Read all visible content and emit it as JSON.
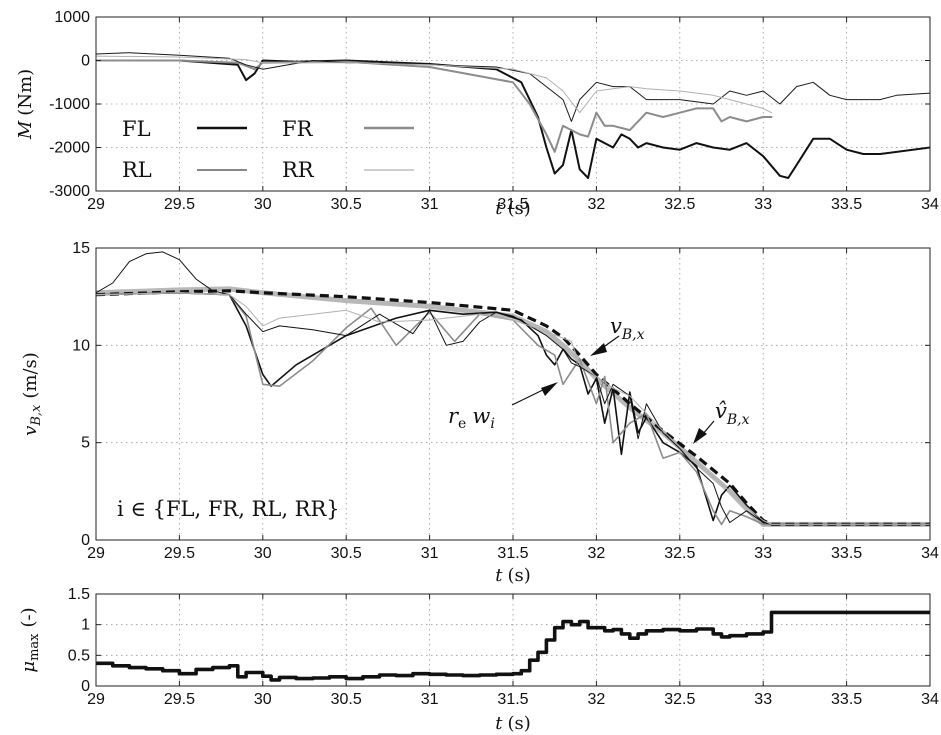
{
  "chart_data": [
    {
      "type": "line",
      "xlim": [
        29,
        34
      ],
      "ylim": [
        -3000,
        1000
      ],
      "xticks": [
        "29",
        "29.5",
        "30",
        "30.5",
        "31",
        "31.5",
        "32",
        "32.5",
        "33",
        "33.5",
        "34"
      ],
      "yticks": [
        "1000",
        "0",
        "-1000",
        "-2000",
        "-3000"
      ],
      "xlabel_var": "t",
      "xlabel_unit": "(s)",
      "ylabel_var": "M",
      "ylabel_unit": "(Nm)",
      "grid": true,
      "legend": {
        "placement": "middle-left",
        "entries": [
          "FL",
          "FR",
          "RL",
          "RR"
        ]
      },
      "series": [
        {
          "name": "FL",
          "color": "#111111",
          "width": 2.0,
          "x": [
            29,
            29.5,
            29.85,
            29.9,
            29.95,
            30.0,
            30.2,
            30.5,
            31.0,
            31.4,
            31.55,
            31.65,
            31.7,
            31.75,
            31.8,
            31.85,
            31.9,
            31.95,
            32.0,
            32.05,
            32.1,
            32.15,
            32.2,
            32.25,
            32.3,
            32.4,
            32.5,
            32.6,
            32.7,
            32.8,
            32.9,
            33.0,
            33.1,
            33.15,
            33.2,
            33.3,
            33.4,
            33.5,
            33.6,
            33.7,
            34
          ],
          "y": [
            0,
            0,
            -100,
            -450,
            -300,
            0,
            -30,
            0,
            -80,
            -200,
            -500,
            -1300,
            -2000,
            -2600,
            -2400,
            -1600,
            -2500,
            -2700,
            -1800,
            -1900,
            -2000,
            -1700,
            -1800,
            -2000,
            -1900,
            -2000,
            -2050,
            -1900,
            -2000,
            -2050,
            -1900,
            -2200,
            -2650,
            -2700,
            -2400,
            -1800,
            -1800,
            -2050,
            -2150,
            -2150,
            -2000
          ]
        },
        {
          "name": "FR",
          "color": "#8c8c8c",
          "width": 2.0,
          "x": [
            29,
            29.5,
            29.85,
            29.95,
            30.0,
            30.5,
            31.0,
            31.5,
            31.6,
            31.7,
            31.75,
            31.8,
            31.85,
            31.9,
            31.95,
            32.0,
            32.05,
            32.1,
            32.2,
            32.3,
            32.4,
            32.5,
            32.6,
            32.7,
            32.75,
            32.8,
            32.9,
            33.0,
            33.05
          ],
          "y": [
            0,
            0,
            -50,
            -200,
            -50,
            -30,
            -150,
            -500,
            -1000,
            -1700,
            -2100,
            -1500,
            -1600,
            -1700,
            -1750,
            -1200,
            -1500,
            -1500,
            -1600,
            -1200,
            -1300,
            -1200,
            -1100,
            -1100,
            -1400,
            -1300,
            -1400,
            -1300,
            -1300
          ]
        },
        {
          "name": "RL",
          "color": "#1a1a1a",
          "width": 1.0,
          "x": [
            29,
            29.2,
            29.5,
            29.8,
            29.9,
            30.0,
            30.3,
            30.5,
            31.0,
            31.4,
            31.6,
            31.8,
            31.85,
            31.9,
            32.0,
            32.1,
            32.2,
            32.3,
            32.5,
            32.7,
            32.8,
            32.9,
            33.0,
            33.1,
            33.2,
            33.3,
            33.4,
            33.5,
            33.7,
            33.8,
            34
          ],
          "y": [
            150,
            180,
            120,
            50,
            -100,
            -200,
            0,
            -50,
            -100,
            -150,
            -300,
            -900,
            -1400,
            -900,
            -500,
            -600,
            -600,
            -900,
            -900,
            -1000,
            -700,
            -800,
            -700,
            -1000,
            -600,
            -500,
            -800,
            -900,
            -900,
            -800,
            -750
          ]
        },
        {
          "name": "RR",
          "color": "#b0b0b0",
          "width": 1.0,
          "x": [
            29,
            29.5,
            29.9,
            30.0,
            30.5,
            31.0,
            31.5,
            31.7,
            31.8,
            31.9,
            32.0,
            32.1,
            32.2,
            32.3,
            32.5,
            32.7,
            32.8,
            32.9,
            33.0,
            33.05
          ],
          "y": [
            100,
            80,
            20,
            -50,
            -50,
            -100,
            -200,
            -400,
            -700,
            -1200,
            -700,
            -650,
            -600,
            -650,
            -700,
            -800,
            -900,
            -1000,
            -1100,
            -1200
          ]
        }
      ]
    },
    {
      "type": "line",
      "xlim": [
        29,
        34
      ],
      "ylim": [
        0,
        15
      ],
      "xticks": [
        "29",
        "29.5",
        "30",
        "30.5",
        "31",
        "31.5",
        "32",
        "32.5",
        "33",
        "33.5",
        "34"
      ],
      "yticks": [
        "15",
        "10",
        "5",
        "0"
      ],
      "xlabel_var": "t",
      "xlabel_unit": "(s)",
      "ylabel_var": "v",
      "ylabel_sub": "B,x",
      "ylabel_unit": "(m/s)",
      "grid": true,
      "annotations": {
        "vbx_var": "v",
        "vbx_sub": "B,x",
        "vhat_var": "v̂",
        "vhat_sub": "B,x",
        "rew_r": "r",
        "rew_e": "e",
        "rew_w": "w",
        "rew_i": "i",
        "set_label": "i ∈ {FL, FR, RL, RR}"
      },
      "series": [
        {
          "name": "v_B,x",
          "color": "#b8b8b8",
          "width": 5.0,
          "x": [
            29,
            29.5,
            29.8,
            30.0,
            30.5,
            31.0,
            31.5,
            31.7,
            31.8,
            31.9,
            32.0,
            32.2,
            32.4,
            32.6,
            32.8,
            32.9,
            33.0,
            33.05,
            34
          ],
          "y": [
            12.7,
            12.85,
            12.9,
            12.7,
            12.3,
            12.0,
            11.5,
            10.7,
            10.0,
            9.2,
            8.3,
            6.8,
            5.5,
            4.0,
            2.5,
            1.6,
            0.8,
            0.8,
            0.8
          ]
        },
        {
          "name": "v̂_B,x",
          "color": "#111111",
          "width": 3.2,
          "dash": "9 5",
          "x": [
            29,
            29.5,
            29.8,
            30.0,
            30.5,
            31.0,
            31.5,
            31.7,
            31.8,
            31.9,
            32.0,
            32.2,
            32.4,
            32.6,
            32.8,
            32.9,
            33.0,
            33.05,
            34
          ],
          "y": [
            12.6,
            12.75,
            12.8,
            12.7,
            12.5,
            12.2,
            11.8,
            11.0,
            10.4,
            9.5,
            8.5,
            7.0,
            5.6,
            4.3,
            2.9,
            1.9,
            1.0,
            0.8,
            0.8
          ]
        },
        {
          "name": "FL",
          "color": "#111111",
          "width": 1.6,
          "x": [
            29,
            29.5,
            29.8,
            29.9,
            30.0,
            30.05,
            30.2,
            30.5,
            30.8,
            31.0,
            31.2,
            31.4,
            31.55,
            31.65,
            31.7,
            31.75,
            31.8,
            31.85,
            31.9,
            31.95,
            32.0,
            32.05,
            32.1,
            32.15,
            32.2,
            32.25,
            32.3,
            32.4,
            32.5,
            32.6,
            32.7,
            32.75,
            32.8,
            32.9,
            33.0,
            33.05,
            34
          ],
          "y": [
            12.6,
            12.7,
            12.6,
            11.0,
            8.5,
            7.9,
            9.0,
            10.5,
            11.4,
            11.8,
            11.6,
            11.7,
            11.3,
            10.5,
            9.5,
            9.0,
            9.8,
            9.3,
            9.0,
            7.5,
            8.3,
            6.0,
            7.8,
            4.4,
            7.6,
            5.5,
            6.3,
            5.0,
            4.5,
            3.8,
            1.0,
            2.3,
            2.8,
            1.8,
            0.9,
            0.8,
            0.8
          ]
        },
        {
          "name": "FR",
          "color": "#8c8c8c",
          "width": 1.6,
          "x": [
            29,
            29.5,
            29.8,
            29.9,
            30.0,
            30.1,
            30.3,
            30.5,
            30.65,
            30.8,
            31.0,
            31.15,
            31.3,
            31.5,
            31.65,
            31.75,
            31.8,
            31.9,
            32.0,
            32.05,
            32.1,
            32.2,
            32.3,
            32.4,
            32.5,
            32.6,
            32.7,
            32.75,
            32.8,
            32.9,
            33.0,
            33.05,
            34
          ],
          "y": [
            12.6,
            12.7,
            12.6,
            11.5,
            8.0,
            7.9,
            9.2,
            10.9,
            11.9,
            10.0,
            11.7,
            10.2,
            11.6,
            11.3,
            10.0,
            9.5,
            8.0,
            9.3,
            7.0,
            8.4,
            5.0,
            6.0,
            6.5,
            4.2,
            4.5,
            3.5,
            1.5,
            0.8,
            1.5,
            1.2,
            0.8,
            0.8,
            0.8
          ]
        },
        {
          "name": "RL",
          "color": "#111111",
          "width": 1.0,
          "x": [
            29,
            29.1,
            29.2,
            29.3,
            29.4,
            29.5,
            29.6,
            29.7,
            29.8,
            29.9,
            30.0,
            30.1,
            30.3,
            30.5,
            30.7,
            30.9,
            31.0,
            31.1,
            31.2,
            31.3,
            31.4,
            31.5,
            31.7,
            31.8,
            31.85,
            31.9,
            32.0,
            32.05,
            32.1,
            32.2,
            32.25,
            32.3,
            32.4,
            32.5,
            32.6,
            32.7,
            32.75,
            32.8,
            32.85,
            32.9,
            33.0,
            33.05,
            34
          ],
          "y": [
            12.7,
            13.2,
            14.3,
            14.7,
            14.8,
            14.4,
            13.4,
            12.8,
            12.6,
            11.6,
            10.7,
            11.0,
            10.8,
            10.5,
            11.6,
            10.6,
            11.8,
            10.0,
            10.2,
            11.2,
            11.7,
            11.5,
            10.5,
            9.8,
            9.1,
            8.9,
            8.4,
            7.0,
            8.0,
            7.4,
            5.2,
            7.0,
            5.5,
            4.7,
            3.7,
            2.9,
            1.7,
            0.9,
            1.2,
            1.5,
            0.9,
            0.8,
            0.8
          ]
        },
        {
          "name": "RR",
          "color": "#b0b0b0",
          "width": 1.0,
          "x": [
            29,
            29.5,
            29.8,
            29.9,
            30.0,
            30.1,
            30.3,
            30.5,
            30.7,
            31.0,
            31.3,
            31.5,
            31.7,
            31.85,
            31.9,
            32.0,
            32.1,
            32.2,
            32.4,
            32.6,
            32.8,
            32.9,
            33.0,
            33.05,
            34
          ],
          "y": [
            12.6,
            12.7,
            12.6,
            12.0,
            11.0,
            11.4,
            11.6,
            11.8,
            11.2,
            11.3,
            11.6,
            11.3,
            10.7,
            10.2,
            9.0,
            8.4,
            7.8,
            7.4,
            5.6,
            4.0,
            2.5,
            1.7,
            1.0,
            0.8,
            0.8
          ]
        }
      ]
    },
    {
      "type": "line",
      "xlim": [
        29,
        34
      ],
      "ylim": [
        0,
        1.5
      ],
      "xticks": [
        "29",
        "29.5",
        "30",
        "30.5",
        "31",
        "31.5",
        "32",
        "32.5",
        "33",
        "33.5",
        "34"
      ],
      "yticks": [
        "1.5",
        "1",
        "0.5",
        "0"
      ],
      "xlabel_var": "t",
      "xlabel_unit": "(s)",
      "ylabel_var": "μ",
      "ylabel_sub": "max",
      "ylabel_unit": "(-)",
      "grid": true,
      "series": [
        {
          "name": "μ_max",
          "color": "#111111",
          "width": 3.6,
          "step": true,
          "x": [
            29,
            29.1,
            29.2,
            29.3,
            29.4,
            29.5,
            29.6,
            29.7,
            29.8,
            29.85,
            29.9,
            30.0,
            30.05,
            30.1,
            30.2,
            30.3,
            30.4,
            30.5,
            30.6,
            30.7,
            30.8,
            30.9,
            31.0,
            31.1,
            31.2,
            31.3,
            31.4,
            31.5,
            31.55,
            31.6,
            31.65,
            31.7,
            31.75,
            31.8,
            31.85,
            31.9,
            31.95,
            32.0,
            32.05,
            32.1,
            32.15,
            32.2,
            32.25,
            32.3,
            32.4,
            32.5,
            32.6,
            32.7,
            32.75,
            32.8,
            32.9,
            33.0,
            33.05,
            34
          ],
          "y": [
            0.37,
            0.33,
            0.3,
            0.28,
            0.25,
            0.2,
            0.27,
            0.3,
            0.33,
            0.15,
            0.22,
            0.16,
            0.1,
            0.14,
            0.12,
            0.13,
            0.15,
            0.12,
            0.15,
            0.18,
            0.17,
            0.2,
            0.19,
            0.18,
            0.17,
            0.18,
            0.19,
            0.2,
            0.25,
            0.42,
            0.55,
            0.75,
            0.95,
            1.05,
            1.0,
            1.05,
            0.95,
            0.95,
            0.9,
            0.92,
            0.85,
            0.78,
            0.85,
            0.9,
            0.92,
            0.9,
            0.93,
            0.85,
            0.8,
            0.82,
            0.85,
            0.88,
            1.2,
            1.2
          ]
        }
      ]
    }
  ]
}
